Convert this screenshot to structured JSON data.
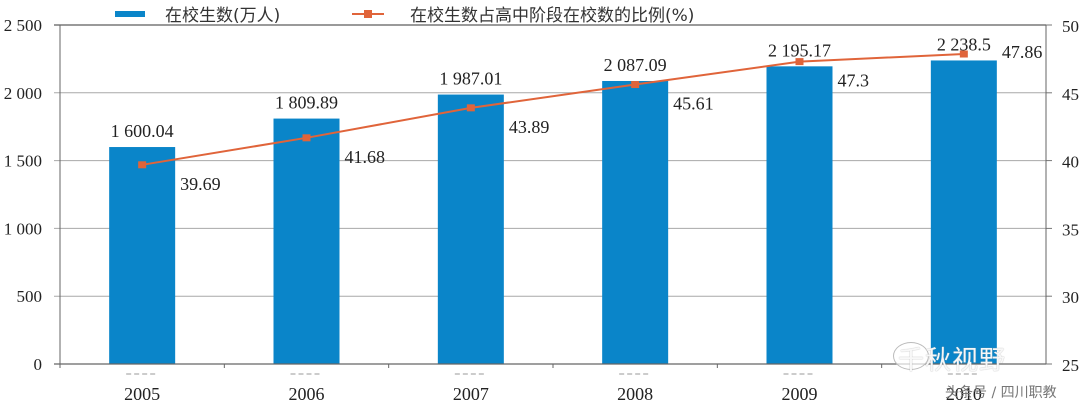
{
  "chart_data": {
    "type": "bar+line",
    "title": "",
    "categories": [
      "2005",
      "2006",
      "2007",
      "2008",
      "2009",
      "2010"
    ],
    "series": [
      {
        "name": "在校生数(万人)",
        "type": "bar",
        "axis": "left",
        "color": "#0a85c9",
        "values": [
          1600.04,
          1809.89,
          1987.01,
          2087.09,
          2195.17,
          2238.5
        ],
        "labels": [
          "1 600.04",
          "1 809.89",
          "1 987.01",
          "2 087.09",
          "2 195.17",
          "2 238.5"
        ]
      },
      {
        "name": "在校生数占高中阶段在校数的比例(%)",
        "type": "line",
        "axis": "right",
        "color": "#e0643a",
        "values": [
          39.69,
          41.68,
          43.89,
          45.61,
          47.3,
          47.86
        ],
        "labels": [
          "39.69",
          "41.68",
          "43.89",
          "45.61",
          "47.3",
          "47.86"
        ]
      }
    ],
    "left_axis": {
      "ylim": [
        0,
        2500
      ],
      "ticks": [
        0,
        500,
        1000,
        1500,
        2000,
        2500
      ],
      "tick_labels": [
        "0",
        "500",
        "1 000",
        "1 500",
        "2 000",
        "2 500"
      ]
    },
    "right_axis": {
      "ylim": [
        25,
        50
      ],
      "ticks": [
        25,
        30,
        35,
        40,
        45,
        50
      ],
      "tick_labels": [
        "25",
        "30",
        "35",
        "40",
        "45",
        "50"
      ]
    },
    "grid": true,
    "legend_position": "top"
  },
  "legend": {
    "bar_label": "在校生数(万人)",
    "line_label": "在校生数占高中阶段在校数的比例(%)"
  },
  "watermark": {
    "main": "千秋视野",
    "sub": "头条号 / 四川职教"
  }
}
